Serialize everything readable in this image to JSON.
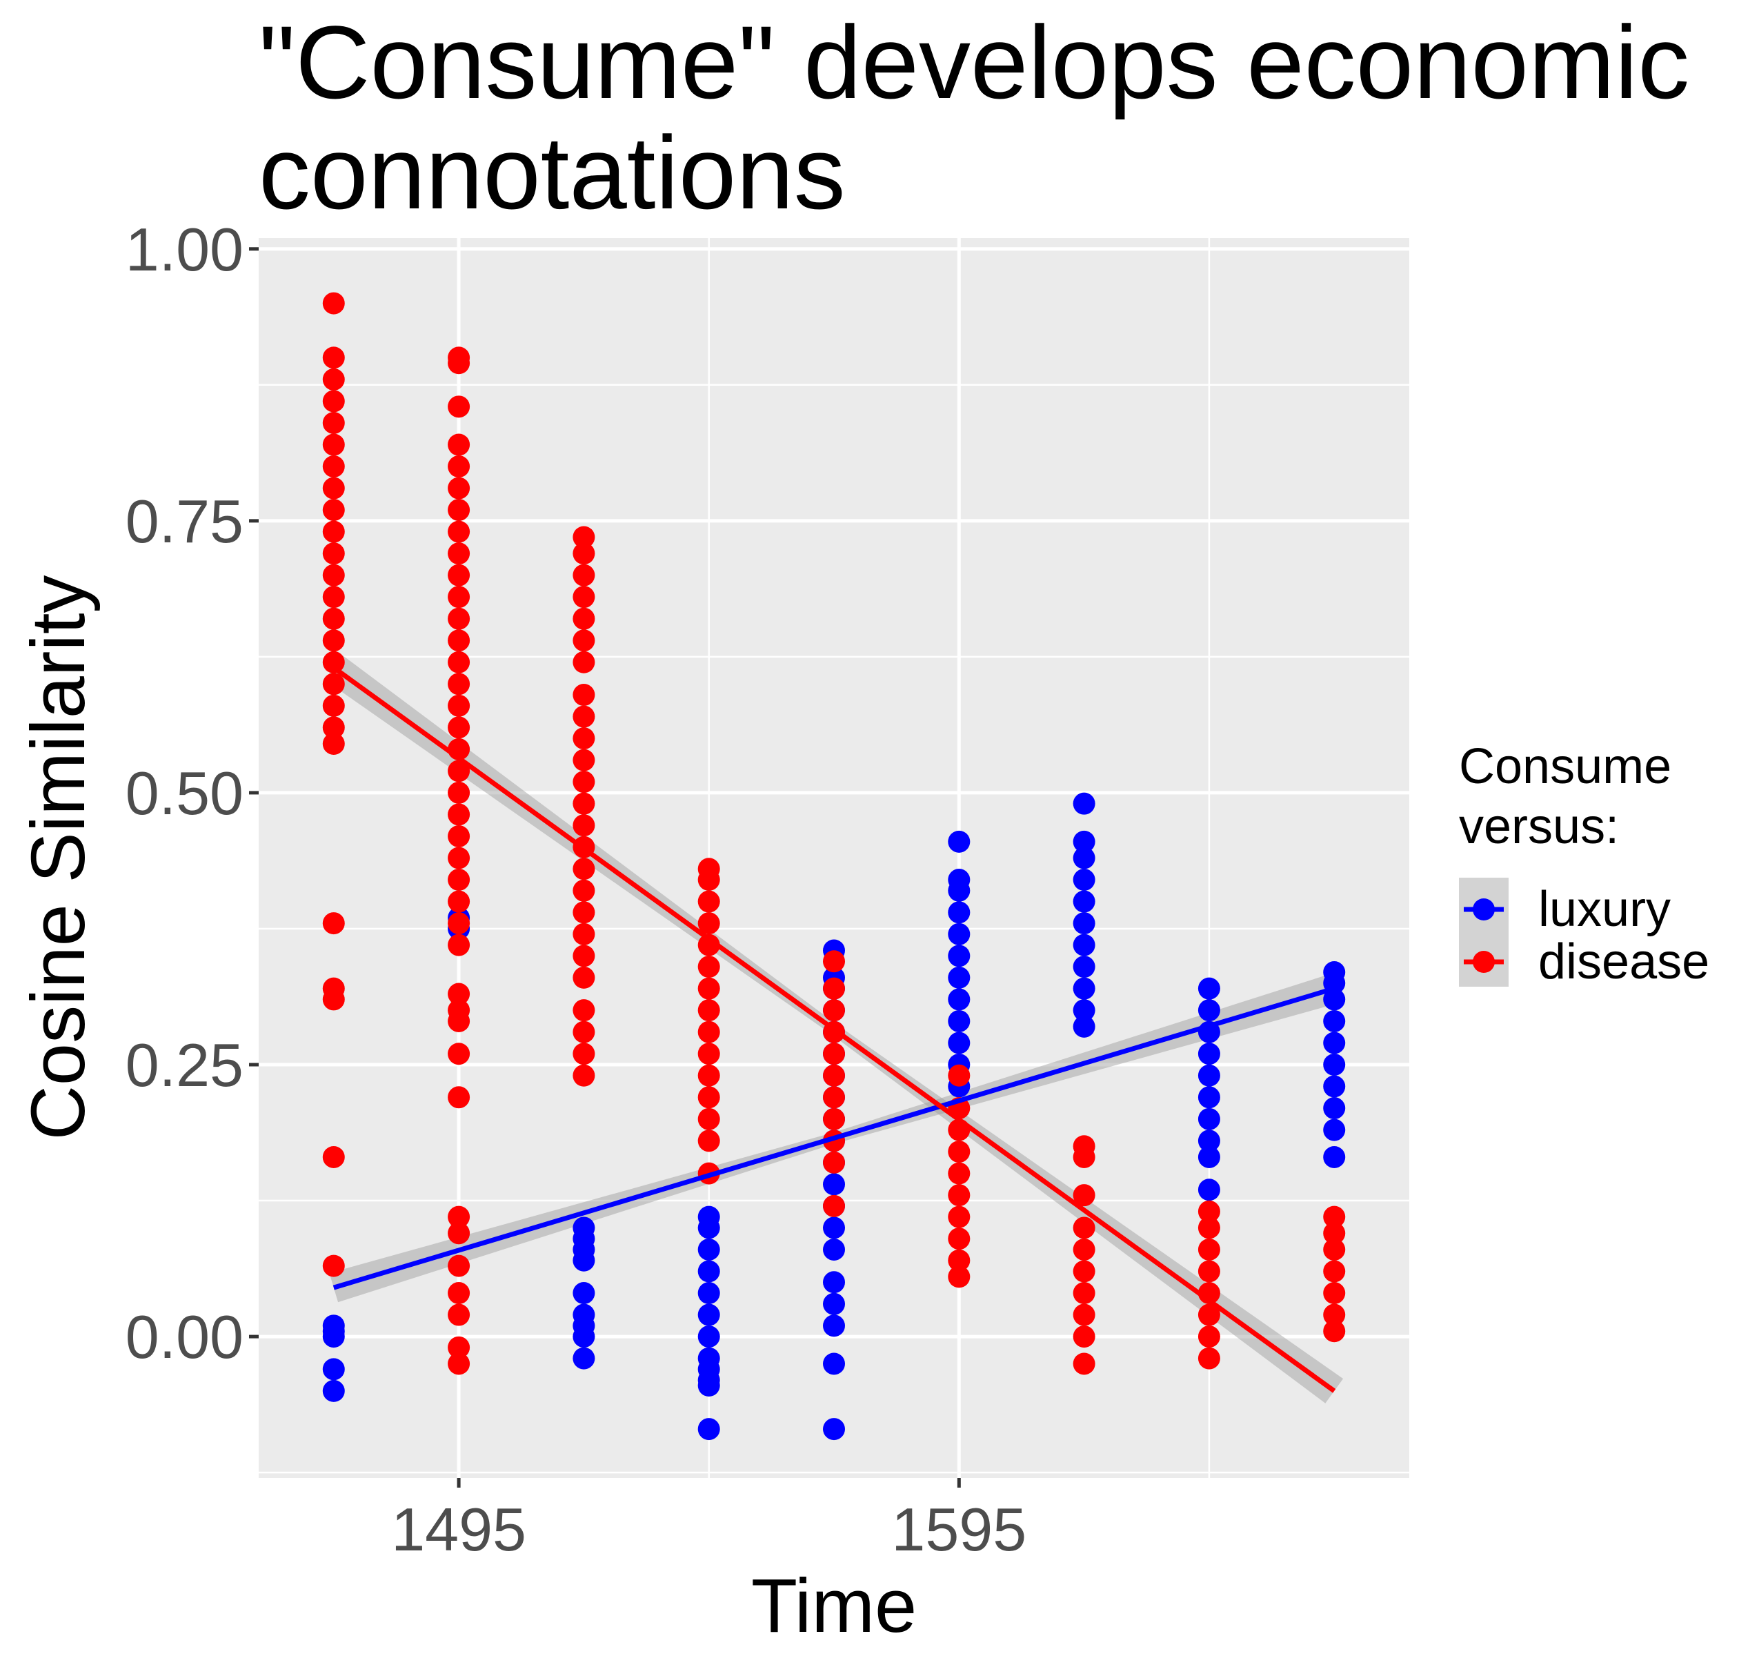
{
  "chart_data": {
    "type": "scatter",
    "title_lines": [
      "\"Consume\" develops economic",
      "connotations"
    ],
    "xlabel": "Time",
    "ylabel": "Cosine Similarity",
    "x_ticks": [
      {
        "value": 1495,
        "label": "1495"
      },
      {
        "value": 1595,
        "label": "1595"
      }
    ],
    "y_ticks": [
      {
        "value": 0.0,
        "label": "0.00"
      },
      {
        "value": 0.25,
        "label": "0.25"
      },
      {
        "value": 0.5,
        "label": "0.50"
      },
      {
        "value": 0.75,
        "label": "0.75"
      },
      {
        "value": 1.0,
        "label": "1.00"
      }
    ],
    "xlim": [
      1455,
      1685
    ],
    "ylim": [
      -0.13,
      1.01
    ],
    "grid": true,
    "legend": {
      "title_lines": [
        "Consume",
        "versus:"
      ],
      "placement": "right",
      "entries": [
        "luxury",
        "disease"
      ]
    },
    "series": [
      {
        "name": "luxury",
        "color": "#0000ff",
        "fit": {
          "x": [
            1470,
            1670
          ],
          "y": [
            0.045,
            0.32
          ]
        },
        "columns": [
          {
            "x": 1470,
            "y": [
              -0.05,
              -0.03,
              0.0,
              0.005,
              0.01
            ]
          },
          {
            "x": 1495,
            "y": [
              0.375,
              0.385
            ]
          },
          {
            "x": 1520,
            "y": [
              -0.02,
              0.0,
              0.01,
              0.02,
              0.04,
              0.07,
              0.08,
              0.09,
              0.1
            ]
          },
          {
            "x": 1545,
            "y": [
              -0.085,
              -0.045,
              -0.04,
              -0.03,
              -0.02,
              0.0,
              0.02,
              0.04,
              0.06,
              0.08,
              0.1,
              0.11
            ]
          },
          {
            "x": 1570,
            "y": [
              -0.085,
              -0.025,
              0.01,
              0.03,
              0.05,
              0.08,
              0.1,
              0.12,
              0.14,
              0.16,
              0.18,
              0.2,
              0.22,
              0.24,
              0.26,
              0.28,
              0.3,
              0.32,
              0.33,
              0.355
            ]
          },
          {
            "x": 1595,
            "y": [
              0.23,
              0.25,
              0.27,
              0.29,
              0.31,
              0.33,
              0.35,
              0.37,
              0.39,
              0.41,
              0.42,
              0.455
            ]
          },
          {
            "x": 1620,
            "y": [
              0.285,
              0.3,
              0.32,
              0.34,
              0.36,
              0.38,
              0.4,
              0.42,
              0.44,
              0.455,
              0.49
            ]
          },
          {
            "x": 1645,
            "y": [
              0.135,
              0.165,
              0.18,
              0.2,
              0.22,
              0.24,
              0.26,
              0.28,
              0.3,
              0.32
            ]
          },
          {
            "x": 1670,
            "y": [
              0.165,
              0.19,
              0.21,
              0.23,
              0.25,
              0.27,
              0.29,
              0.31,
              0.325,
              0.335
            ]
          }
        ]
      },
      {
        "name": "disease",
        "color": "#ff0000",
        "fit": {
          "x": [
            1470,
            1670
          ],
          "y": [
            0.615,
            -0.05
          ]
        },
        "columns": [
          {
            "x": 1470,
            "y": [
              0.065,
              0.165,
              0.31,
              0.32,
              0.38,
              0.545,
              0.56,
              0.58,
              0.6,
              0.62,
              0.64,
              0.66,
              0.68,
              0.7,
              0.72,
              0.74,
              0.76,
              0.78,
              0.8,
              0.82,
              0.84,
              0.86,
              0.88,
              0.9,
              0.95
            ]
          },
          {
            "x": 1495,
            "y": [
              -0.025,
              -0.01,
              0.02,
              0.04,
              0.065,
              0.095,
              0.11,
              0.22,
              0.26,
              0.29,
              0.3,
              0.315,
              0.36,
              0.38,
              0.4,
              0.42,
              0.44,
              0.46,
              0.48,
              0.5,
              0.52,
              0.54,
              0.56,
              0.58,
              0.6,
              0.62,
              0.64,
              0.66,
              0.68,
              0.7,
              0.72,
              0.74,
              0.76,
              0.78,
              0.8,
              0.82,
              0.855,
              0.895,
              0.9
            ]
          },
          {
            "x": 1520,
            "y": [
              0.24,
              0.26,
              0.28,
              0.3,
              0.33,
              0.35,
              0.37,
              0.39,
              0.41,
              0.43,
              0.45,
              0.47,
              0.49,
              0.51,
              0.53,
              0.55,
              0.57,
              0.59,
              0.62,
              0.64,
              0.66,
              0.68,
              0.7,
              0.72,
              0.735
            ]
          },
          {
            "x": 1545,
            "y": [
              0.15,
              0.18,
              0.2,
              0.22,
              0.24,
              0.26,
              0.28,
              0.3,
              0.32,
              0.34,
              0.36,
              0.38,
              0.4,
              0.42,
              0.43
            ]
          },
          {
            "x": 1570,
            "y": [
              0.12,
              0.16,
              0.18,
              0.2,
              0.22,
              0.24,
              0.26,
              0.28,
              0.3,
              0.32,
              0.345
            ]
          },
          {
            "x": 1595,
            "y": [
              0.055,
              0.07,
              0.09,
              0.11,
              0.13,
              0.15,
              0.17,
              0.19,
              0.21,
              0.24
            ]
          },
          {
            "x": 1620,
            "y": [
              -0.025,
              0.0,
              0.02,
              0.04,
              0.06,
              0.08,
              0.1,
              0.13,
              0.165,
              0.175
            ]
          },
          {
            "x": 1645,
            "y": [
              -0.02,
              0.0,
              0.02,
              0.04,
              0.06,
              0.08,
              0.1,
              0.115
            ]
          },
          {
            "x": 1670,
            "y": [
              0.005,
              0.02,
              0.04,
              0.06,
              0.08,
              0.095,
              0.11
            ]
          }
        ]
      }
    ]
  }
}
